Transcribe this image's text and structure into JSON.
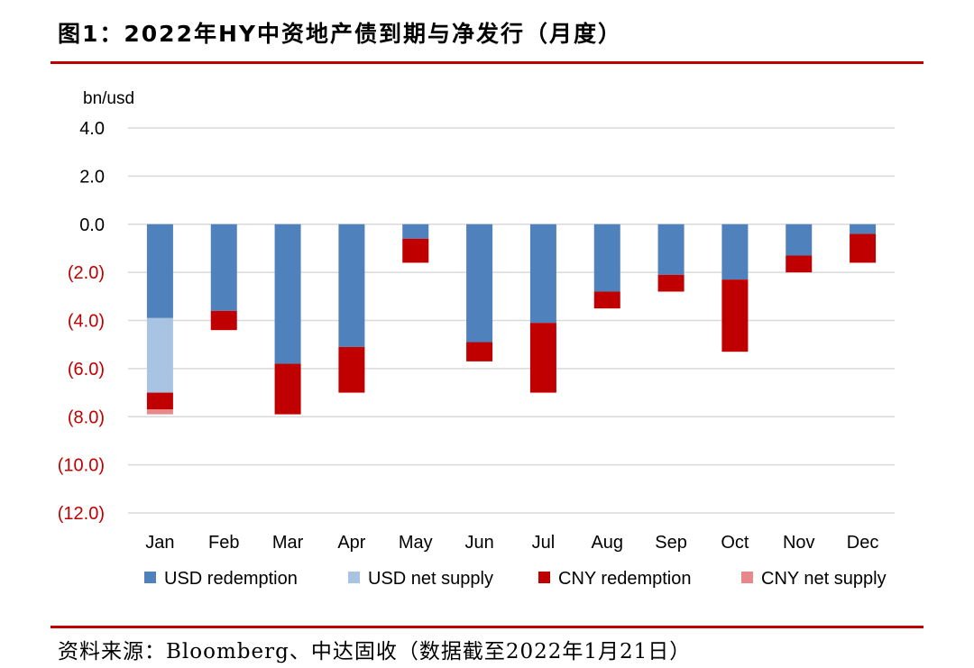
{
  "title": "图1：2022年HY中资地产债到期与净发行（月度）",
  "source": "资料来源：Bloomberg、中达固收（数据截至2022年1月21日）",
  "chart_data": {
    "type": "bar",
    "stacked": true,
    "unit_label": "bn/usd",
    "categories": [
      "Jan",
      "Feb",
      "Mar",
      "Apr",
      "May",
      "Jun",
      "Jul",
      "Aug",
      "Sep",
      "Oct",
      "Nov",
      "Dec"
    ],
    "series": [
      {
        "name": "USD redemption",
        "color": "#4f81bd",
        "values": [
          -3.9,
          -3.6,
          -5.8,
          -5.1,
          -0.6,
          -4.9,
          -4.1,
          -2.8,
          -2.1,
          -2.3,
          -1.3,
          -0.4
        ]
      },
      {
        "name": "USD net supply",
        "color": "#a9c3e3",
        "values": [
          -3.1,
          0,
          0,
          0,
          0,
          0,
          0,
          0,
          0,
          0,
          0,
          0
        ]
      },
      {
        "name": "CNY redemption",
        "color": "#c00000",
        "values": [
          -0.7,
          -0.8,
          -2.1,
          -1.9,
          -1.0,
          -0.8,
          -2.9,
          -0.7,
          -0.7,
          -3.0,
          -0.7,
          -1.2
        ]
      },
      {
        "name": "CNY net supply",
        "color": "#e8888a",
        "values": [
          -0.2,
          0,
          0,
          0,
          0,
          0,
          0,
          0,
          0,
          0,
          0,
          0
        ]
      }
    ],
    "ylim": [
      -12,
      4
    ],
    "yticks": [
      4,
      2,
      0,
      -2,
      -4,
      -6,
      -8,
      -10,
      -12
    ],
    "ytick_labels": [
      "4.0",
      "2.0",
      "0.0",
      "(2.0)",
      "(4.0)",
      "(6.0)",
      "(8.0)",
      "(10.0)",
      "(12.0)"
    ],
    "negative_tick_color": "#c00000",
    "grid": true,
    "legend_position": "bottom"
  }
}
